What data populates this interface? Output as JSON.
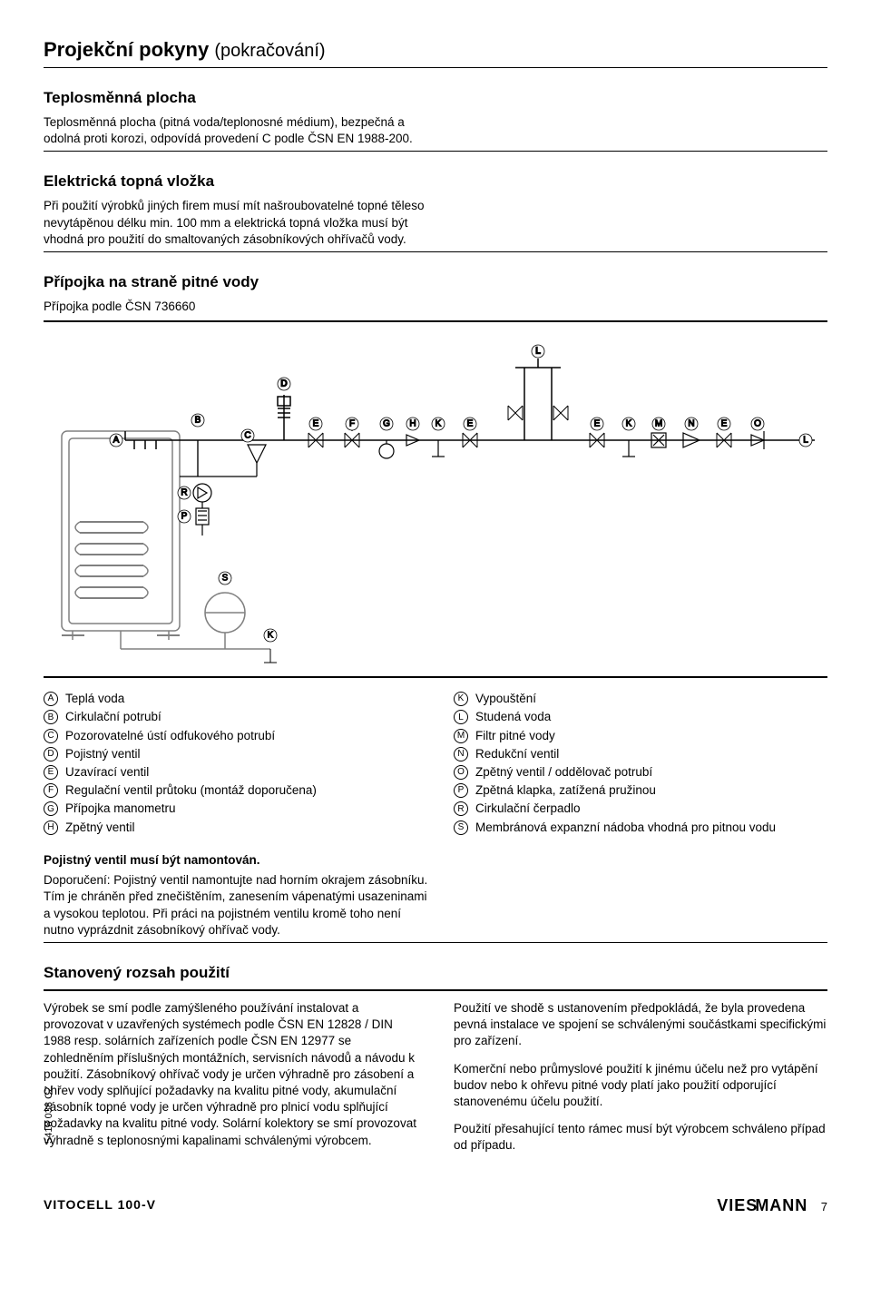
{
  "page": {
    "title_main": "Projekční pokyny",
    "title_cont": "(pokračování)"
  },
  "sec1": {
    "heading": "Teplosměnná plocha",
    "text": "Teplosměnná plocha (pitná voda/teplonosné médium), bezpečná a odolná proti korozi, odpovídá provedení C podle ČSN EN 1988-200."
  },
  "sec2": {
    "heading": "Elektrická topná vložka",
    "text": "Při použití výrobků jiných firem musí mít našroubovatelné topné těleso nevytápěnou délku min. 100 mm a elektrická topná vložka musí být vhodná pro použití do smaltovaných zásobníkových ohřívačů vody."
  },
  "sec3": {
    "heading": "Přípojka na straně pitné vody",
    "subtext": "Přípojka podle ČSN 736660",
    "diagram_labels_top_pipe": [
      "D",
      "B",
      "A",
      "C",
      "E",
      "F",
      "G",
      "H",
      "K",
      "E",
      "E",
      "K",
      "M",
      "N",
      "E",
      "O",
      "L"
    ],
    "diagram_label_top_column": "L",
    "diagram_label_pump": "R",
    "diagram_label_check": "P",
    "diagram_label_expansion": "S",
    "diagram_label_drain": "K"
  },
  "legend": {
    "left": [
      {
        "k": "A",
        "v": "Teplá voda"
      },
      {
        "k": "B",
        "v": "Cirkulační potrubí"
      },
      {
        "k": "C",
        "v": "Pozorovatelné ústí odfukového potrubí"
      },
      {
        "k": "D",
        "v": "Pojistný ventil"
      },
      {
        "k": "E",
        "v": "Uzavírací ventil"
      },
      {
        "k": "F",
        "v": "Regulační ventil průtoku (montáž doporučena)"
      },
      {
        "k": "G",
        "v": "Přípojka manometru"
      },
      {
        "k": "H",
        "v": "Zpětný ventil"
      }
    ],
    "right": [
      {
        "k": "K",
        "v": "Vypouštění"
      },
      {
        "k": "L",
        "v": "Studená voda"
      },
      {
        "k": "M",
        "v": "Filtr pitné vody"
      },
      {
        "k": "N",
        "v": "Redukční ventil"
      },
      {
        "k": "O",
        "v": "Zpětný ventil / oddělovač potrubí"
      },
      {
        "k": "P",
        "v": "Zpětná klapka, zatížená pružinou"
      },
      {
        "k": "R",
        "v": "Cirkulační čerpadlo"
      },
      {
        "k": "S",
        "v": "Membránová expanzní nádoba vhodná pro pitnou vodu"
      }
    ]
  },
  "sec4": {
    "heading": "Pojistný ventil musí být namontován.",
    "text": "Doporučení: Pojistný ventil namontujte nad horním okrajem zásobníku. Tím je chráněn před znečištěním, zanesením vápenatými usazeninami a vysokou teplotou. Při práci na pojistném ventilu kromě toho není nutno vyprázdnit zásobníkový ohřívač vody."
  },
  "sec5": {
    "heading": "Stanovený rozsah použití",
    "left": "Výrobek se smí podle zamýšleného používání instalovat a provozovat v uzavřených systémech podle ČSN EN 12828 / DIN 1988 resp. solárních zařízeních podle ČSN EN 12977 se zohledněním příslušných montážních, servisních návodů a návodu k použití. Zásobníkový ohřívač vody je určen výhradně pro zásobení a ohřev vody splňující požadavky na kvalitu pitné vody, akumulační zásobník topné vody je určen výhradně pro plnicí vodu splňující požadavky na kvalitu pitné vody. Solární kolektory se smí provozovat výhradně s teplonosnými kapalinami schválenými výrobcem.",
    "right1": "Použití ve shodě s ustanovením předpokládá, že byla provedena pevná instalace ve spojení se schválenými součástkami specifickými pro zařízení.",
    "right2": "Komerční nebo průmyslové použití k jinému účelu než pro vytápění budov nebo k ohřevu pitné vody platí jako použití odporující stanovenému účelu použití.",
    "right3": "Použití přesahující tento rámec musí být výrobcem schváleno případ od případu."
  },
  "footer": {
    "product": "VITOCELL 100-V",
    "brand": "VIESMANN",
    "page": "7",
    "code": "5418 038 CZ"
  },
  "colors": {
    "line": "#000000",
    "grey": "#808080"
  }
}
